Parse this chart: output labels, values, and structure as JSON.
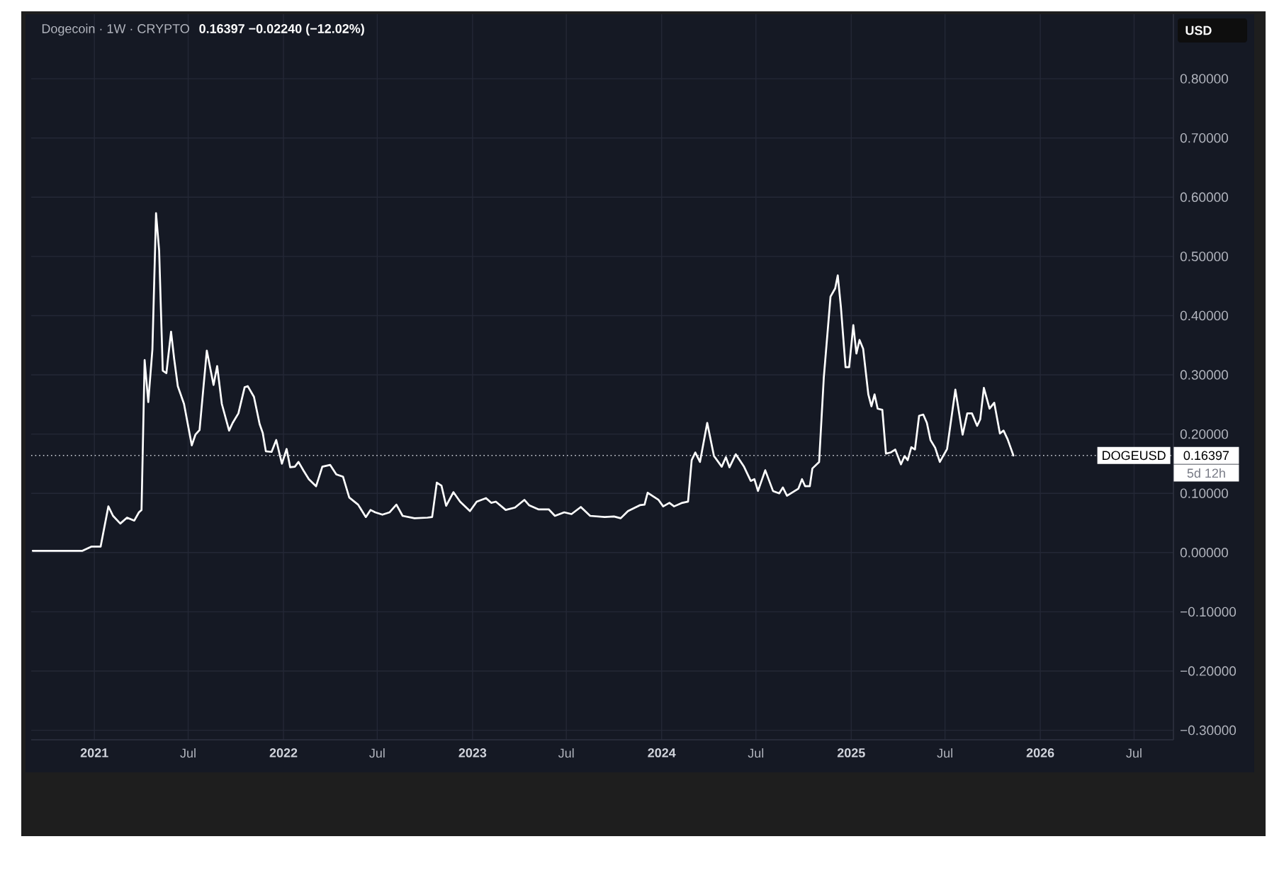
{
  "chart_data": {
    "type": "line",
    "title": "Dogecoin · 1W · CRYPTO",
    "subtitle": "0.16397  −0.02240 (−12.02%)",
    "ylabel": "USD",
    "x": [
      "2020-09-04",
      "2020-12-09",
      "2020-12-26",
      "2021-01-13",
      "2021-01-28",
      "2021-02-06",
      "2021-02-20",
      "2021-03-05",
      "2021-03-19",
      "2021-03-28",
      "2021-04-02",
      "2021-04-08",
      "2021-04-15",
      "2021-04-23",
      "2021-04-30",
      "2021-05-06",
      "2021-05-13",
      "2021-05-20",
      "2021-05-29",
      "2021-06-04",
      "2021-06-11",
      "2021-06-23",
      "2021-07-08",
      "2021-07-15",
      "2021-07-23",
      "2021-08-06",
      "2021-08-19",
      "2021-08-26",
      "2021-09-04",
      "2021-09-18",
      "2021-09-25",
      "2021-10-06",
      "2021-10-18",
      "2021-10-24",
      "2021-11-05",
      "2021-11-16",
      "2021-11-22",
      "2021-11-28",
      "2021-12-09",
      "2021-12-18",
      "2021-12-29",
      "2022-01-07",
      "2022-01-14",
      "2022-01-23",
      "2022-01-30",
      "2022-02-09",
      "2022-02-19",
      "2022-03-05",
      "2022-03-17",
      "2022-04-01",
      "2022-04-13",
      "2022-04-26",
      "2022-05-08",
      "2022-05-25",
      "2022-06-09",
      "2022-06-18",
      "2022-06-27",
      "2022-07-11",
      "2022-07-25",
      "2022-08-07",
      "2022-08-19",
      "2022-09-11",
      "2022-10-06",
      "2022-10-15",
      "2022-10-24",
      "2022-11-02",
      "2022-11-11",
      "2022-11-25",
      "2022-12-08",
      "2022-12-27",
      "2023-01-09",
      "2023-01-27",
      "2023-02-06",
      "2023-02-15",
      "2023-03-06",
      "2023-03-24",
      "2023-04-11",
      "2023-04-20",
      "2023-05-08",
      "2023-05-28",
      "2023-06-09",
      "2023-06-27",
      "2023-07-11",
      "2023-07-29",
      "2023-08-16",
      "2023-09-13",
      "2023-10-01",
      "2023-10-14",
      "2023-10-28",
      "2023-11-20",
      "2023-11-29",
      "2023-12-05",
      "2023-12-17",
      "2023-12-26",
      "2024-01-04",
      "2024-01-16",
      "2024-01-25",
      "2024-02-10",
      "2024-02-21",
      "2024-02-28",
      "2024-03-06",
      "2024-03-15",
      "2024-03-29",
      "2024-04-11",
      "2024-04-26",
      "2024-05-04",
      "2024-05-11",
      "2024-05-23",
      "2024-06-08",
      "2024-06-21",
      "2024-06-28",
      "2024-07-05",
      "2024-07-19",
      "2024-08-03",
      "2024-08-15",
      "2024-08-22",
      "2024-08-30",
      "2024-09-21",
      "2024-09-28",
      "2024-10-04",
      "2024-10-13",
      "2024-10-18",
      "2024-10-31",
      "2024-11-09",
      "2024-11-22",
      "2024-12-01",
      "2024-12-06",
      "2024-12-12",
      "2024-12-21",
      "2024-12-28",
      "2025-01-05",
      "2025-01-11",
      "2025-01-17",
      "2025-01-24",
      "2025-02-03",
      "2025-02-09",
      "2025-02-15",
      "2025-02-21",
      "2025-03-02",
      "2025-03-09",
      "2025-03-18",
      "2025-03-27",
      "2025-04-07",
      "2025-04-14",
      "2025-04-20",
      "2025-04-27",
      "2025-05-04",
      "2025-05-12",
      "2025-05-20",
      "2025-05-27",
      "2025-06-03",
      "2025-06-12",
      "2025-06-21",
      "2025-07-05",
      "2025-07-21",
      "2025-08-04",
      "2025-08-13",
      "2025-08-22",
      "2025-09-01",
      "2025-09-07",
      "2025-09-14",
      "2025-09-25",
      "2025-10-04",
      "2025-10-15",
      "2025-10-22",
      "2025-10-30",
      "2025-11-10"
    ],
    "series": [
      {
        "color": "#ffffff",
        "values": [
          0.003,
          0.003,
          0.01,
          0.01,
          0.078,
          0.062,
          0.049,
          0.059,
          0.054,
          0.068,
          0.072,
          0.325,
          0.254,
          0.343,
          0.573,
          0.51,
          0.307,
          0.303,
          0.373,
          0.327,
          0.281,
          0.251,
          0.181,
          0.199,
          0.207,
          0.341,
          0.283,
          0.315,
          0.251,
          0.206,
          0.219,
          0.235,
          0.279,
          0.281,
          0.263,
          0.217,
          0.202,
          0.171,
          0.17,
          0.19,
          0.15,
          0.175,
          0.144,
          0.145,
          0.153,
          0.138,
          0.124,
          0.112,
          0.145,
          0.148,
          0.132,
          0.128,
          0.093,
          0.081,
          0.06,
          0.072,
          0.068,
          0.064,
          0.068,
          0.081,
          0.062,
          0.058,
          0.059,
          0.06,
          0.118,
          0.113,
          0.079,
          0.102,
          0.086,
          0.07,
          0.086,
          0.092,
          0.084,
          0.086,
          0.072,
          0.076,
          0.089,
          0.08,
          0.073,
          0.073,
          0.062,
          0.068,
          0.065,
          0.077,
          0.062,
          0.06,
          0.061,
          0.058,
          0.07,
          0.08,
          0.081,
          0.101,
          0.094,
          0.089,
          0.078,
          0.084,
          0.078,
          0.084,
          0.086,
          0.156,
          0.169,
          0.153,
          0.219,
          0.163,
          0.145,
          0.161,
          0.144,
          0.166,
          0.145,
          0.121,
          0.124,
          0.104,
          0.139,
          0.104,
          0.1,
          0.11,
          0.096,
          0.108,
          0.124,
          0.112,
          0.112,
          0.142,
          0.153,
          0.295,
          0.432,
          0.446,
          0.468,
          0.415,
          0.313,
          0.313,
          0.384,
          0.336,
          0.359,
          0.344,
          0.267,
          0.247,
          0.267,
          0.243,
          0.241,
          0.167,
          0.169,
          0.174,
          0.149,
          0.163,
          0.156,
          0.178,
          0.174,
          0.231,
          0.233,
          0.219,
          0.19,
          0.177,
          0.153,
          0.175,
          0.275,
          0.199,
          0.235,
          0.235,
          0.214,
          0.225,
          0.278,
          0.243,
          0.253,
          0.201,
          0.206,
          0.191,
          0.16397
        ]
      }
    ],
    "xlim": [
      "2020-09-01",
      "2026-09-15"
    ],
    "xticks": [
      {
        "value": "2021-01-01",
        "label": "2021"
      },
      {
        "value": "2021-07-01",
        "label": "Jul"
      },
      {
        "value": "2022-01-01",
        "label": "2022"
      },
      {
        "value": "2022-07-01",
        "label": "Jul"
      },
      {
        "value": "2023-01-01",
        "label": "2023"
      },
      {
        "value": "2023-07-01",
        "label": "Jul"
      },
      {
        "value": "2024-01-01",
        "label": "2024"
      },
      {
        "value": "2024-07-01",
        "label": "Jul"
      },
      {
        "value": "2025-01-01",
        "label": "2025"
      },
      {
        "value": "2025-07-01",
        "label": "Jul"
      },
      {
        "value": "2026-01-01",
        "label": "2026"
      },
      {
        "value": "2026-07-01",
        "label": "Jul"
      }
    ],
    "ylim": [
      -0.316,
      0.909
    ],
    "yticks": [
      {
        "value": -0.3,
        "label": "−0.30000"
      },
      {
        "value": -0.2,
        "label": "−0.20000"
      },
      {
        "value": -0.1,
        "label": "−0.10000"
      },
      {
        "value": 0,
        "label": "0.00000"
      },
      {
        "value": 0.1,
        "label": "0.10000"
      },
      {
        "value": 0.2,
        "label": "0.20000"
      },
      {
        "value": 0.3,
        "label": "0.30000"
      },
      {
        "value": 0.4,
        "label": "0.40000"
      },
      {
        "value": 0.5,
        "label": "0.50000"
      },
      {
        "value": 0.6,
        "label": "0.60000"
      },
      {
        "value": 0.7,
        "label": "0.70000"
      },
      {
        "value": 0.8,
        "label": "0.80000"
      }
    ],
    "grid": true,
    "ref_lines": [
      {
        "axis": "y",
        "value": 0.16397,
        "label": "DOGEUSD",
        "color": "#d1d4dc",
        "line_style": "dotted"
      }
    ],
    "annotations": [
      "0.16397",
      "5d 12h"
    ]
  }
}
